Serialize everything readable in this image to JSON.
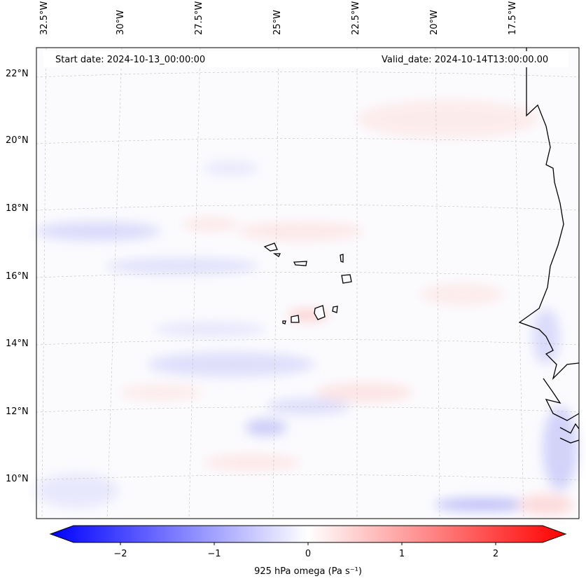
{
  "header": {
    "start_date": "Start date: 2024-10-13_00:00:00",
    "valid_date": "Valid_date: 2024-10-14T13:00:00.00"
  },
  "axes": {
    "longitude_labels": [
      "32.5°W",
      "30°W",
      "27.5°W",
      "25°W",
      "22.5°W",
      "20°W",
      "17.5°W"
    ],
    "latitude_labels": [
      "22°N",
      "20°N",
      "18°N",
      "16°N",
      "14°N",
      "12°N",
      "10°N"
    ]
  },
  "colorbar": {
    "title": "925 hPa omega (Pa s⁻¹)",
    "ticks": [
      "−2",
      "−1",
      "0",
      "1",
      "2"
    ],
    "range": [
      -2.5,
      2.5
    ],
    "colormap": "bwr",
    "extend": "both"
  },
  "colors": {
    "negative": "#0000ff",
    "neutral": "#ffffff",
    "positive": "#ff0000",
    "coastline": "#000000"
  }
}
